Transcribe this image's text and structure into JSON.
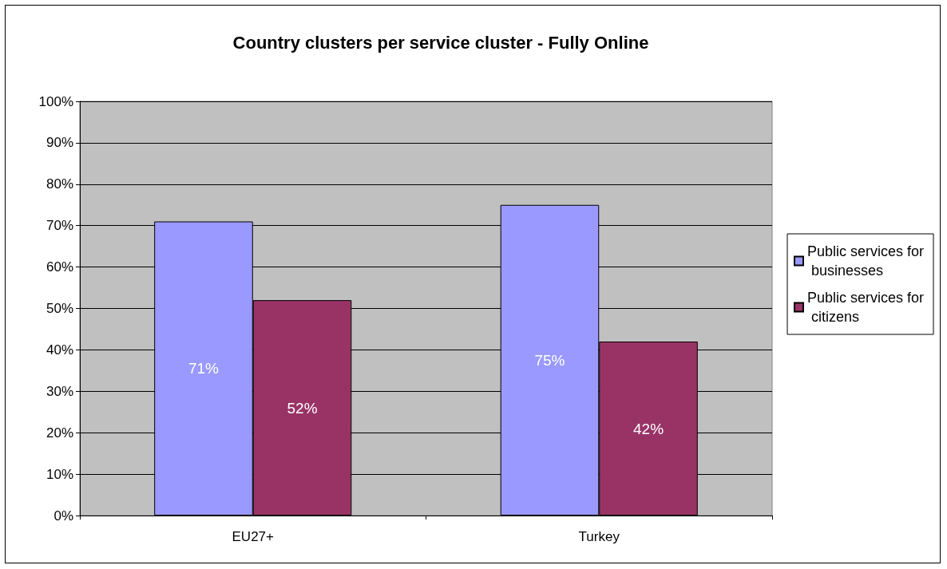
{
  "chart_data": {
    "type": "bar",
    "title": "Country clusters per service cluster - Fully Online",
    "categories": [
      "EU27+",
      "Turkey"
    ],
    "series": [
      {
        "name": "Public services for businesses",
        "color": "#9999ff",
        "values": [
          71,
          75
        ],
        "value_labels": [
          "71%",
          "75%"
        ]
      },
      {
        "name": "Public services for citizens",
        "color": "#993366",
        "values": [
          52,
          42
        ],
        "value_labels": [
          "52%",
          "42%"
        ]
      }
    ],
    "ylim": [
      0,
      100
    ],
    "yticks": [
      {
        "value": 0,
        "label": "0%"
      },
      {
        "value": 10,
        "label": "10%"
      },
      {
        "value": 20,
        "label": "20%"
      },
      {
        "value": 30,
        "label": "30%"
      },
      {
        "value": 40,
        "label": "40%"
      },
      {
        "value": 50,
        "label": "50%"
      },
      {
        "value": 60,
        "label": "60%"
      },
      {
        "value": 70,
        "label": "70%"
      },
      {
        "value": 80,
        "label": "80%"
      },
      {
        "value": 90,
        "label": "90%"
      },
      {
        "value": 100,
        "label": "100%"
      }
    ],
    "grid": "y",
    "legend": "right"
  }
}
